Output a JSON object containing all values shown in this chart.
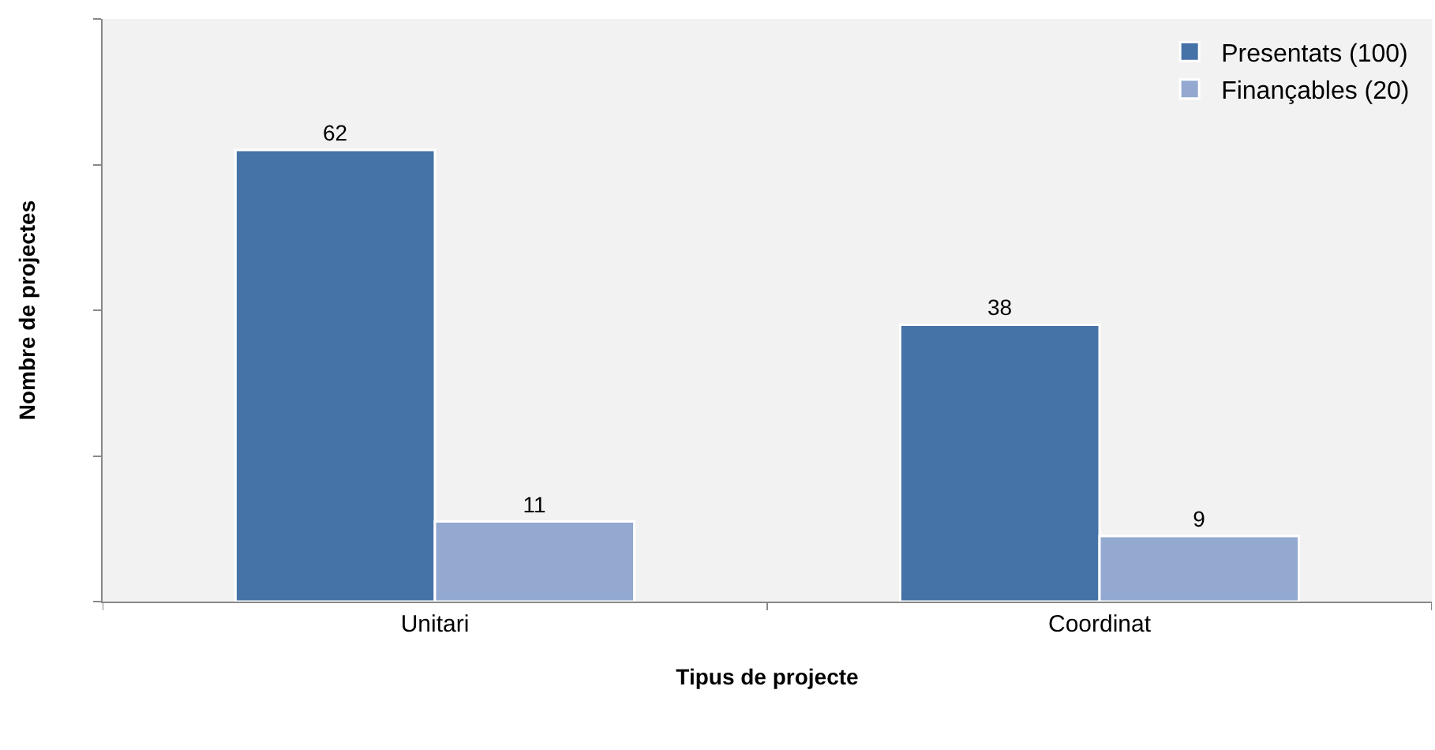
{
  "chart_data": {
    "type": "bar",
    "xlabel": "Tipus de projecte",
    "ylabel": "Nombre de projectes",
    "categories": [
      "Unitari",
      "Coordinat"
    ],
    "series": [
      {
        "name": "Presentats (100)",
        "color": "#4572a7",
        "values": [
          62,
          38
        ]
      },
      {
        "name": "Finançables (20)",
        "color": "#93a9d0",
        "values": [
          11,
          9
        ]
      }
    ],
    "ylim": [
      0,
      80
    ],
    "yticks": [
      {
        "value": 0,
        "label": null
      },
      {
        "value": 20,
        "label": null
      },
      {
        "value": 40,
        "label": null
      },
      {
        "value": 60,
        "label": null
      },
      {
        "value": 80,
        "label": null
      }
    ],
    "data_labels": true,
    "grid": false,
    "legend": "top right"
  }
}
